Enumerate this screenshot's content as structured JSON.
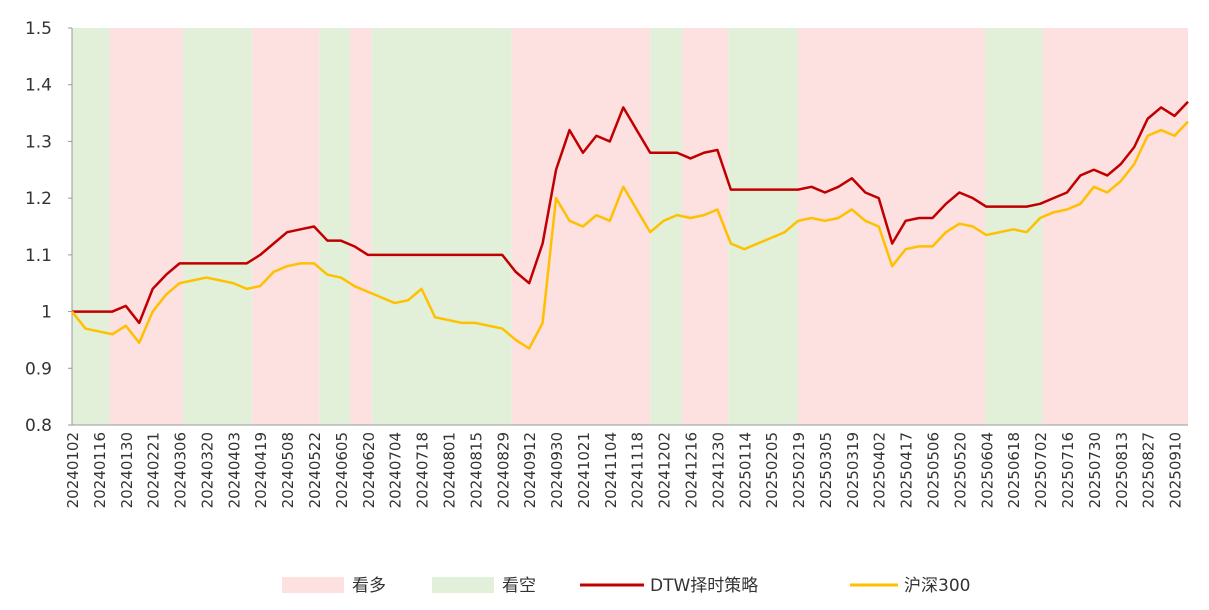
{
  "chart_data": {
    "type": "line",
    "categories": [
      "20240102",
      null,
      "20240116",
      null,
      "20240130",
      null,
      "20240221",
      null,
      "20240306",
      null,
      "20240320",
      null,
      "20240403",
      null,
      "20240419",
      null,
      "20240508",
      null,
      "20240522",
      null,
      "20240605",
      null,
      "20240620",
      null,
      "20240704",
      null,
      "20240718",
      null,
      "20240801",
      null,
      "20240815",
      null,
      "20240829",
      null,
      "20240912",
      null,
      "20240930",
      null,
      "20241021",
      null,
      "20241104",
      null,
      "20241118",
      null,
      "20241202",
      null,
      "20241216",
      null,
      "20241230",
      null,
      "20250114",
      null,
      "20250205",
      null,
      "20250219",
      null,
      "20250305",
      null,
      "20250319",
      null,
      "20250402",
      null,
      "20250417",
      null,
      "20250506",
      null,
      "20250520",
      null,
      "20250604",
      null,
      "20250618",
      null,
      "20250702",
      null,
      "20250716",
      null,
      "20250730",
      null,
      "20250813",
      null,
      "20250827",
      null,
      "20250910",
      null
    ],
    "series": [
      {
        "name": "DTW择时策略",
        "color": "#c00000",
        "values": [
          1.0,
          1.0,
          1.0,
          1.0,
          1.01,
          0.98,
          1.04,
          1.065,
          1.085,
          1.085,
          1.085,
          1.085,
          1.085,
          1.085,
          1.1,
          1.12,
          1.14,
          1.145,
          1.15,
          1.125,
          1.125,
          1.115,
          1.1,
          1.1,
          1.1,
          1.1,
          1.1,
          1.1,
          1.1,
          1.1,
          1.1,
          1.1,
          1.1,
          1.07,
          1.05,
          1.12,
          1.25,
          1.32,
          1.28,
          1.31,
          1.3,
          1.36,
          1.32,
          1.28,
          1.28,
          1.28,
          1.27,
          1.28,
          1.285,
          1.215,
          1.215,
          1.215,
          1.215,
          1.215,
          1.215,
          1.22,
          1.21,
          1.22,
          1.235,
          1.21,
          1.2,
          1.12,
          1.16,
          1.165,
          1.165,
          1.19,
          1.21,
          1.2,
          1.185,
          1.185,
          1.185,
          1.185,
          1.19,
          1.2,
          1.21,
          1.24,
          1.25,
          1.24,
          1.26,
          1.29,
          1.34,
          1.36,
          1.345,
          1.37
        ]
      },
      {
        "name": "沪深300",
        "color": "#ffc000",
        "values": [
          1.0,
          0.97,
          0.965,
          0.96,
          0.975,
          0.945,
          1.0,
          1.03,
          1.05,
          1.055,
          1.06,
          1.055,
          1.05,
          1.04,
          1.045,
          1.07,
          1.08,
          1.085,
          1.085,
          1.065,
          1.06,
          1.045,
          1.035,
          1.025,
          1.015,
          1.02,
          1.04,
          0.99,
          0.985,
          0.98,
          0.98,
          0.975,
          0.97,
          0.95,
          0.935,
          0.98,
          1.2,
          1.16,
          1.15,
          1.17,
          1.16,
          1.22,
          1.18,
          1.14,
          1.16,
          1.17,
          1.165,
          1.17,
          1.18,
          1.12,
          1.11,
          1.12,
          1.13,
          1.14,
          1.16,
          1.165,
          1.16,
          1.165,
          1.18,
          1.16,
          1.15,
          1.08,
          1.11,
          1.115,
          1.115,
          1.14,
          1.155,
          1.15,
          1.135,
          1.14,
          1.145,
          1.14,
          1.165,
          1.175,
          1.18,
          1.19,
          1.22,
          1.21,
          1.23,
          1.26,
          1.31,
          1.32,
          1.31,
          1.335
        ]
      }
    ],
    "bands": [
      {
        "name": "看多",
        "color": "#fde0e0"
      },
      {
        "name": "看空",
        "color": "#e2f0d9"
      }
    ],
    "regimes": [
      {
        "band": 1,
        "from": 0,
        "to": 2.8
      },
      {
        "band": 0,
        "from": 2.8,
        "to": 8.25
      },
      {
        "band": 1,
        "from": 8.25,
        "to": 13.4
      },
      {
        "band": 0,
        "from": 13.4,
        "to": 18.4
      },
      {
        "band": 1,
        "from": 18.4,
        "to": 20.7
      },
      {
        "band": 0,
        "from": 20.7,
        "to": 22.3
      },
      {
        "band": 1,
        "from": 22.3,
        "to": 32.7
      },
      {
        "band": 0,
        "from": 32.7,
        "to": 43
      },
      {
        "band": 1,
        "from": 43,
        "to": 45.4
      },
      {
        "band": 0,
        "from": 45.4,
        "to": 48.8
      },
      {
        "band": 1,
        "from": 48.8,
        "to": 54
      },
      {
        "band": 0,
        "from": 54,
        "to": 67.9
      },
      {
        "band": 1,
        "from": 67.9,
        "to": 72.2
      },
      {
        "band": 0,
        "from": 72.2,
        "to": 83
      }
    ],
    "ylim": [
      0.8,
      1.5
    ],
    "yticks": [
      0.8,
      0.9,
      1,
      1.1,
      1.2,
      1.3,
      1.4,
      1.5
    ]
  }
}
